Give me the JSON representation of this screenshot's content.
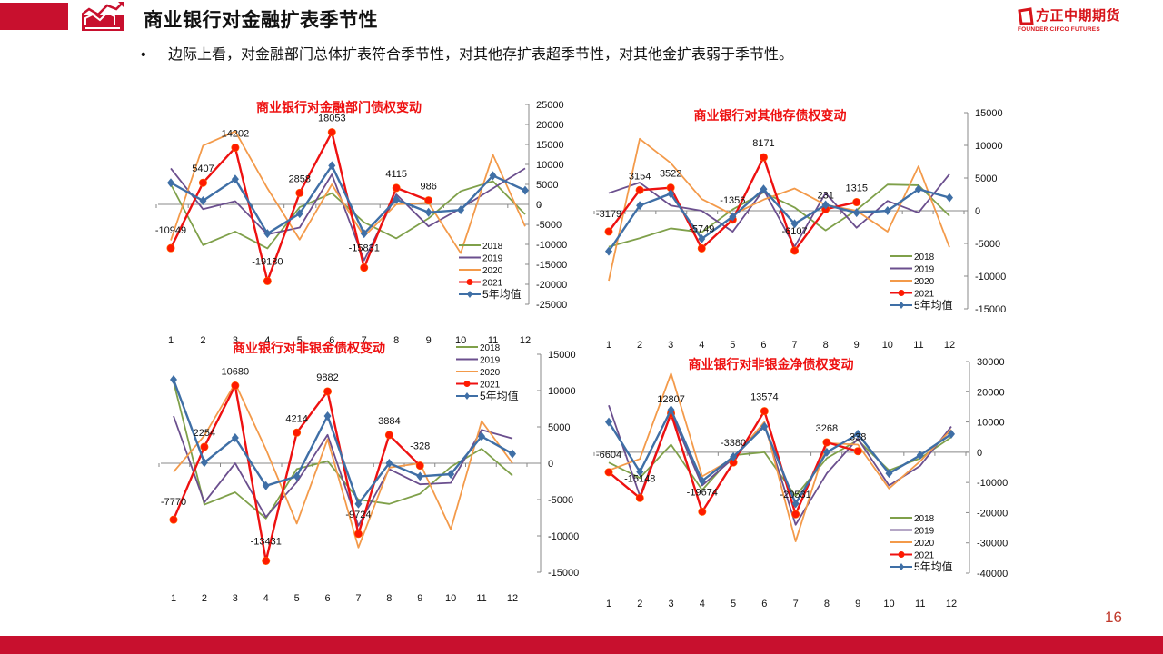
{
  "header": {
    "title": "商业银行对金融扩表季节性",
    "bullet": "边际上看，对金融部门总体扩表符合季节性，对其他存扩表超季节性，对其他金扩表弱于季节性。",
    "brand_name": "方正中期期货",
    "brand_sub": "FOUNDER CIFCO FUTURES"
  },
  "footer": {
    "page_number": "16"
  },
  "series_style": {
    "2018": "#7fa04a",
    "2019": "#6b4f8e",
    "2020": "#f39a4a",
    "2021": "#ee1111",
    "5年均值": "#3f6fa6"
  },
  "chart_data": [
    {
      "type": "line",
      "title": "商业银行对金融部门债权变动",
      "categories": [
        "1",
        "2",
        "3",
        "4",
        "5",
        "6",
        "7",
        "8",
        "9",
        "10",
        "11",
        "12"
      ],
      "ylim": [
        -25000,
        25000
      ],
      "yticks": [
        25000,
        20000,
        15000,
        10000,
        5000,
        0,
        -5000,
        -10000,
        -15000,
        -20000,
        -25000
      ],
      "legend": "bottom-right",
      "series": [
        {
          "name": "2018",
          "values": [
            5000,
            -10200,
            -6800,
            -11000,
            -700,
            2800,
            -4500,
            -8500,
            -3500,
            3300,
            5800,
            -2500
          ]
        },
        {
          "name": "2019",
          "values": [
            9000,
            -1200,
            800,
            -7500,
            -5800,
            7500,
            -14000,
            2500,
            -5500,
            -1000,
            4000,
            9000
          ]
        },
        {
          "name": "2020",
          "values": [
            -9000,
            14700,
            18300,
            4000,
            -8800,
            5000,
            -8000,
            0,
            400,
            -12200,
            12400,
            -5500
          ]
        },
        {
          "name": "2021",
          "values": [
            -10949,
            5407,
            14202,
            -19180,
            2858,
            18053,
            -15831,
            4115,
            986,
            null,
            null,
            null
          ],
          "labels": true
        },
        {
          "name": "5年均值",
          "values": [
            5400,
            900,
            6300,
            -7300,
            -2300,
            9700,
            -7300,
            1200,
            -2000,
            -1400,
            7200,
            3500
          ]
        }
      ],
      "data_labels": [
        "-10949",
        "5407",
        "14202",
        "-19180",
        "2858",
        "18053",
        "-15831",
        "4115",
        "986"
      ]
    },
    {
      "type": "line",
      "title": "商业银行对其他存债权变动",
      "categories": [
        "1",
        "2",
        "3",
        "4",
        "5",
        "6",
        "7",
        "8",
        "9",
        "10",
        "11",
        "12"
      ],
      "ylim": [
        -15000,
        15000
      ],
      "yticks": [
        15000,
        10000,
        5000,
        0,
        -5000,
        -10000,
        -15000
      ],
      "legend": "bottom-right",
      "series": [
        {
          "name": "2018",
          "values": [
            -5500,
            -4200,
            -2700,
            -3300,
            200,
            2800,
            500,
            -3000,
            100,
            4000,
            3900,
            -800
          ]
        },
        {
          "name": "2019",
          "values": [
            2700,
            4300,
            800,
            0,
            -3200,
            3200,
            -5500,
            2700,
            -2600,
            1500,
            -300,
            5600
          ]
        },
        {
          "name": "2020",
          "values": [
            -10700,
            11000,
            7300,
            1800,
            -600,
            1700,
            3400,
            900,
            0,
            -3200,
            6800,
            -5600
          ]
        },
        {
          "name": "2021",
          "values": [
            -3179,
            3154,
            3522,
            -5749,
            -1356,
            8171,
            -6107,
            231,
            1315,
            null,
            null,
            null
          ],
          "labels": true
        },
        {
          "name": "5年均值",
          "values": [
            -6200,
            800,
            2600,
            -4300,
            -900,
            3300,
            -2000,
            900,
            -300,
            0,
            3300,
            2000
          ]
        }
      ],
      "data_labels": [
        "-3179",
        "3154",
        "3522",
        "-5749",
        "-1356",
        "8171",
        "-6107",
        "231",
        "1315"
      ]
    },
    {
      "type": "line",
      "title": "商业银行对非银金债权变动",
      "categories": [
        "1",
        "2",
        "3",
        "4",
        "5",
        "6",
        "7",
        "8",
        "9",
        "10",
        "11",
        "12"
      ],
      "ylim": [
        -15000,
        15000
      ],
      "yticks": [
        15000,
        10000,
        5000,
        0,
        -5000,
        -10000,
        -15000
      ],
      "legend": "top-right",
      "series": [
        {
          "name": "2018",
          "values": [
            11200,
            -5700,
            -4000,
            -7600,
            -800,
            300,
            -5000,
            -5600,
            -4200,
            -500,
            2000,
            -1700
          ]
        },
        {
          "name": "2019",
          "values": [
            6500,
            -5400,
            0,
            -7400,
            -2600,
            3900,
            -8600,
            -800,
            -2900,
            -2700,
            4600,
            3400
          ]
        },
        {
          "name": "2020",
          "values": [
            -1200,
            3800,
            11000,
            1900,
            -8300,
            3300,
            -11600,
            -600,
            0,
            -9100,
            5800,
            0
          ]
        },
        {
          "name": "2021",
          "values": [
            -7770,
            2254,
            10680,
            -13431,
            4214,
            9882,
            -9724,
            3884,
            -328,
            null,
            null,
            null
          ],
          "labels": true
        },
        {
          "name": "5年均值",
          "values": [
            11500,
            100,
            3500,
            -3100,
            -1800,
            6500,
            -5600,
            0,
            -1800,
            -1500,
            3700,
            1300
          ]
        }
      ],
      "data_labels": [
        "-7770",
        "2254",
        "10680",
        "-13431",
        "4214",
        "9882",
        "-9724",
        "3884",
        "-328"
      ]
    },
    {
      "type": "line",
      "title": "商业银行对非银金净债权变动",
      "categories": [
        "1",
        "2",
        "3",
        "4",
        "5",
        "6",
        "7",
        "8",
        "9",
        "10",
        "11",
        "12"
      ],
      "ylim": [
        -40000,
        30000
      ],
      "yticks": [
        30000,
        20000,
        10000,
        0,
        -10000,
        -20000,
        -30000,
        -40000
      ],
      "legend": "bottom-right",
      "series": [
        {
          "name": "2018",
          "values": [
            -3400,
            -8500,
            2500,
            -12500,
            -1000,
            0,
            -14500,
            -2000,
            4000,
            -6000,
            -2000,
            5000
          ]
        },
        {
          "name": "2019",
          "values": [
            15500,
            -14500,
            13000,
            -11000,
            -2000,
            9000,
            -24000,
            -7000,
            4500,
            -11000,
            -4500,
            8500
          ]
        },
        {
          "name": "2020",
          "values": [
            -6000,
            -2200,
            26000,
            -8000,
            -2000,
            10000,
            -29500,
            3000,
            2500,
            -12000,
            -3000,
            7500
          ]
        },
        {
          "name": "2021",
          "values": [
            -6604,
            -15148,
            12807,
            -19674,
            -3380,
            13574,
            -20531,
            3268,
            338,
            null,
            null,
            null
          ],
          "labels": true
        },
        {
          "name": "5年均值",
          "values": [
            10000,
            -6500,
            14000,
            -9500,
            -1500,
            8500,
            -17000,
            0,
            6000,
            -7000,
            -1000,
            6000
          ]
        }
      ],
      "data_labels": [
        "-6604",
        "-15148",
        "12807",
        "-19674",
        "-3380",
        "13574",
        "-20531",
        "3268",
        "338"
      ]
    }
  ]
}
